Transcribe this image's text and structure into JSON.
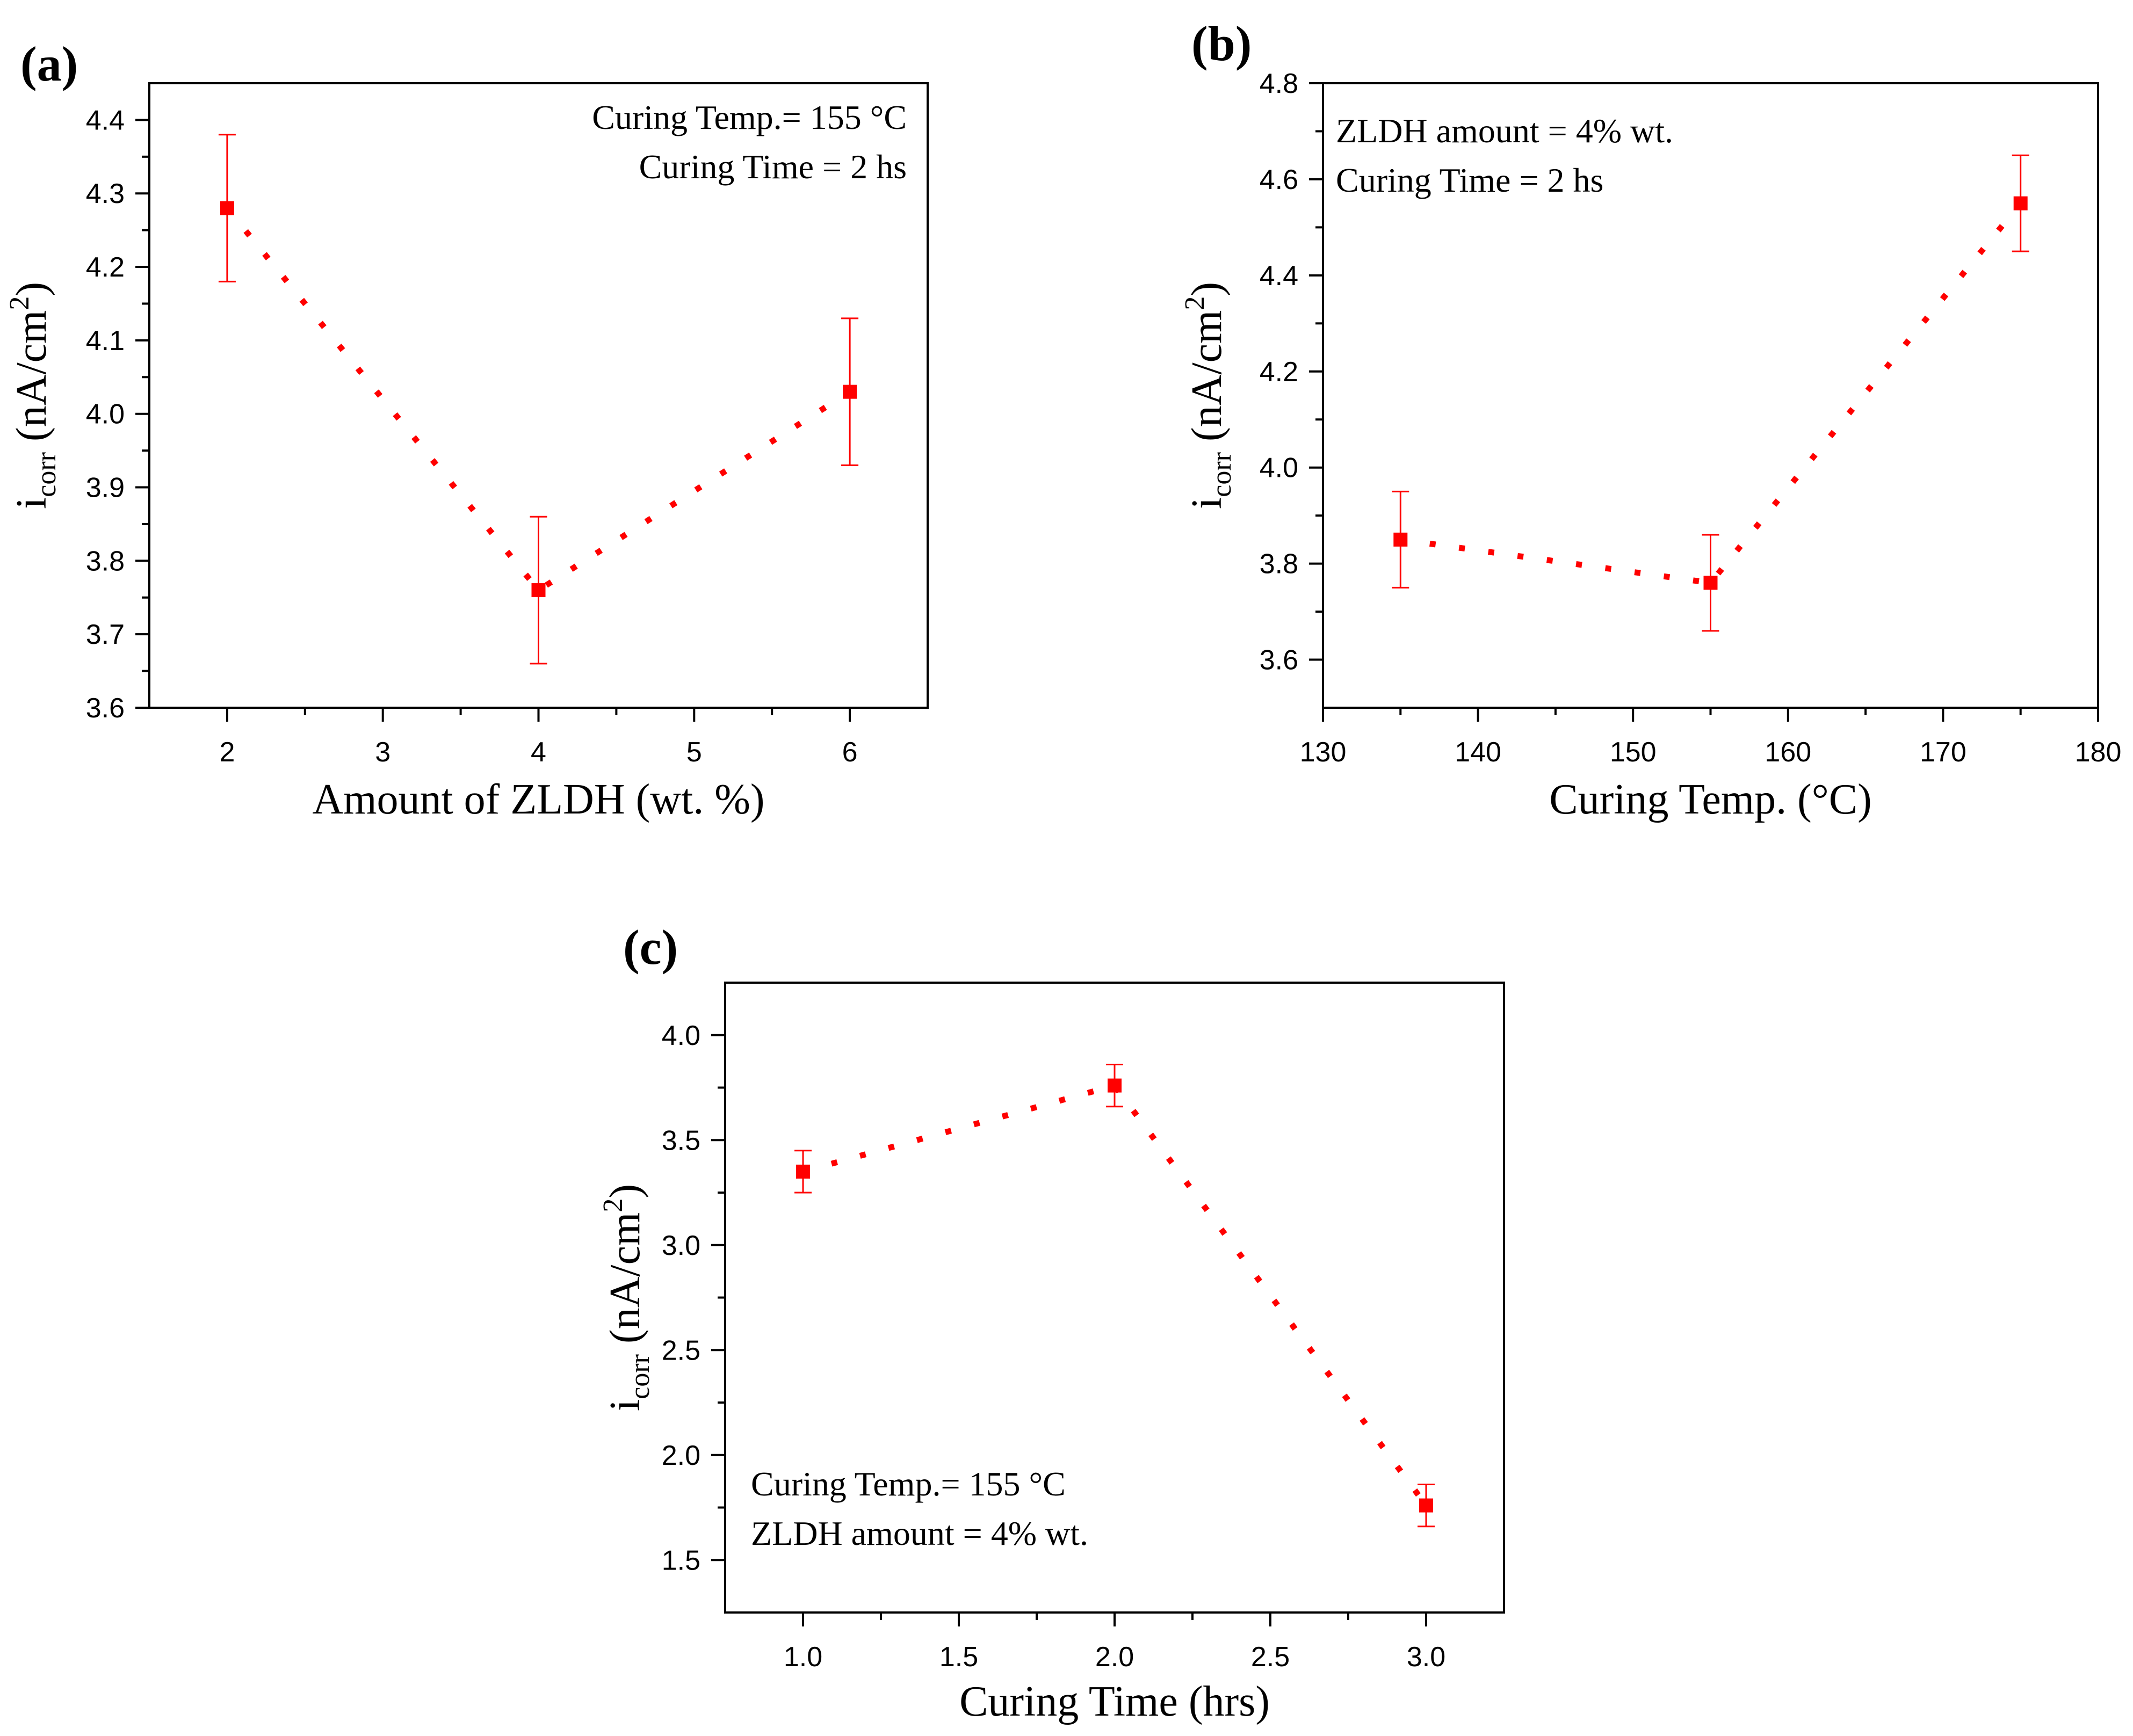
{
  "chart_data": [
    {
      "panel_label": "(a)",
      "type": "scatter",
      "x": [
        2,
        4,
        6
      ],
      "y": [
        4.28,
        3.76,
        4.03
      ],
      "error": [
        0.1,
        0.1,
        0.1
      ],
      "xlabel": "Amount of ZLDH (wt. %)",
      "ylabel": {
        "main": "i",
        "sub": "corr",
        "unit": " (nA/cm",
        "sup": "2",
        "close": ")"
      },
      "xlim": [
        1.5,
        6.5
      ],
      "ylim": [
        3.6,
        4.45
      ],
      "xticks": [
        2,
        3,
        4,
        5,
        6
      ],
      "xticklabels": [
        "2",
        "3",
        "4",
        "5",
        "6"
      ],
      "yticks": [
        3.6,
        3.7,
        3.8,
        3.9,
        4.0,
        4.1,
        4.2,
        4.3,
        4.4
      ],
      "yticklabels": [
        "3.6",
        "3.7",
        "3.8",
        "3.9",
        "4.0",
        "4.1",
        "4.2",
        "4.3",
        "4.4"
      ],
      "annotations": [
        "Curing Temp.= 155 °C",
        "Curing Time = 2 hs"
      ],
      "annotation_position": "top-right",
      "grid": false,
      "color": "#ff0000"
    },
    {
      "panel_label": "(b)",
      "type": "scatter",
      "x": [
        135,
        155,
        175
      ],
      "y": [
        3.85,
        3.76,
        4.55
      ],
      "error": [
        0.1,
        0.1,
        0.1
      ],
      "xlabel": "Curing Temp. (°C)",
      "ylabel": {
        "main": "i",
        "sub": "corr",
        "unit": " (nA/cm",
        "sup": "2",
        "close": ")"
      },
      "xlim": [
        130,
        180
      ],
      "ylim": [
        3.5,
        4.8
      ],
      "xticks": [
        130,
        140,
        150,
        160,
        170,
        180
      ],
      "xticklabels": [
        "130",
        "140",
        "150",
        "160",
        "170",
        "180"
      ],
      "yticks": [
        3.6,
        3.8,
        4.0,
        4.2,
        4.4,
        4.6,
        4.8
      ],
      "yticklabels": [
        "3.6",
        "3.8",
        "4.0",
        "4.2",
        "4.4",
        "4.6",
        "4.8"
      ],
      "annotations": [
        "ZLDH amount = 4% wt.",
        "Curing Time = 2 hs"
      ],
      "annotation_position": "top-left",
      "grid": false,
      "color": "#ff0000"
    },
    {
      "panel_label": "(c)",
      "type": "scatter",
      "x": [
        1.0,
        2.0,
        3.0
      ],
      "y": [
        3.35,
        3.76,
        1.76
      ],
      "error": [
        0.1,
        0.1,
        0.1
      ],
      "xlabel": "Curing Time (hrs)",
      "ylabel": {
        "main": "i",
        "sub": "corr",
        "unit": " (nA/cm",
        "sup": "2",
        "close": ")"
      },
      "xlim": [
        0.75,
        3.25
      ],
      "ylim": [
        1.25,
        4.25
      ],
      "xticks": [
        1.0,
        1.5,
        2.0,
        2.5,
        3.0
      ],
      "xticklabels": [
        "1.0",
        "1.5",
        "2.0",
        "2.5",
        "3.0"
      ],
      "yticks": [
        1.5,
        2.0,
        2.5,
        3.0,
        3.5,
        4.0
      ],
      "yticklabels": [
        "1.5",
        "2.0",
        "2.5",
        "3.0",
        "3.5",
        "4.0"
      ],
      "annotations": [
        "Curing Temp.= 155 °C",
        "ZLDH amount = 4% wt."
      ],
      "annotation_position": "bottom-left",
      "grid": false,
      "color": "#ff0000"
    }
  ]
}
